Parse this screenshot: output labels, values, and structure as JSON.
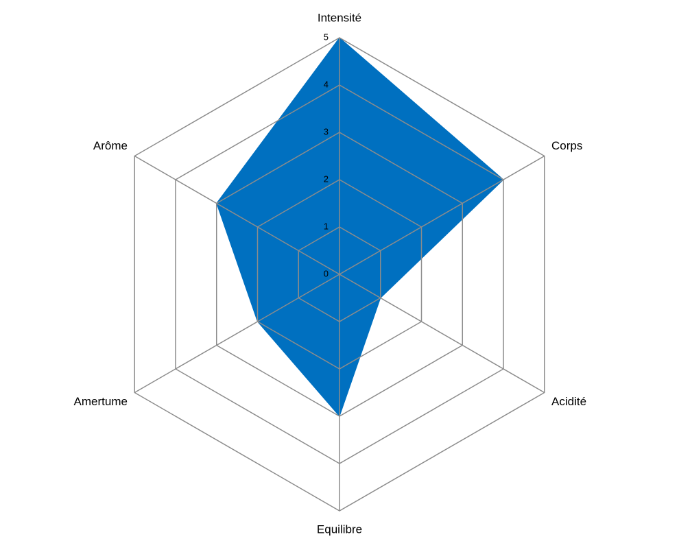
{
  "chart_data": {
    "type": "radar",
    "categories": [
      "Intensité",
      "Corps",
      "Acidité",
      "Equilibre",
      "Amertume",
      "Arôme"
    ],
    "values": [
      5,
      4,
      1,
      3,
      2,
      3
    ],
    "color": "#0070c0",
    "rlim": [
      0,
      5
    ],
    "rticks": [
      0,
      1,
      2,
      3,
      4,
      5
    ],
    "grid": true
  }
}
